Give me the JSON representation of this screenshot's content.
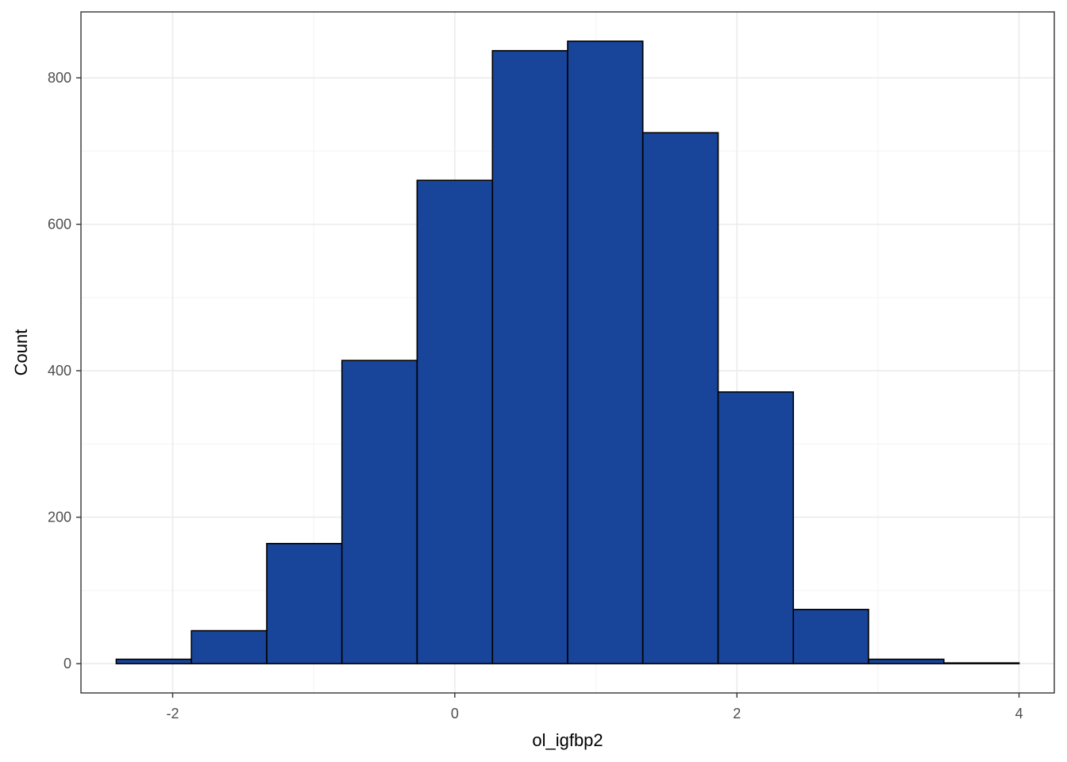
{
  "chart_data": {
    "type": "bar",
    "subtype": "histogram",
    "title": "",
    "xlabel": "ol_igfbp2",
    "ylabel": "Count",
    "xlim": [
      -2.65,
      4.25
    ],
    "ylim": [
      -40,
      890
    ],
    "x_ticks": [
      -2,
      0,
      2,
      4
    ],
    "x_minor_ticks": [
      -1,
      1,
      3
    ],
    "y_ticks": [
      0,
      200,
      400,
      600,
      800
    ],
    "y_minor_ticks": [
      100,
      300,
      500,
      700
    ],
    "grid": true,
    "legend": "none",
    "bins": [
      {
        "x0": -2.4,
        "x1": -1.867,
        "count": 6
      },
      {
        "x0": -1.867,
        "x1": -1.333,
        "count": 45
      },
      {
        "x0": -1.333,
        "x1": -0.8,
        "count": 164
      },
      {
        "x0": -0.8,
        "x1": -0.267,
        "count": 414
      },
      {
        "x0": -0.267,
        "x1": 0.267,
        "count": 660
      },
      {
        "x0": 0.267,
        "x1": 0.8,
        "count": 837
      },
      {
        "x0": 0.8,
        "x1": 1.333,
        "count": 850
      },
      {
        "x0": 1.333,
        "x1": 1.867,
        "count": 725
      },
      {
        "x0": 1.867,
        "x1": 2.4,
        "count": 371
      },
      {
        "x0": 2.4,
        "x1": 2.933,
        "count": 74
      },
      {
        "x0": 2.933,
        "x1": 3.467,
        "count": 6
      },
      {
        "x0": 3.467,
        "x1": 4.0,
        "count": 1
      }
    ],
    "colors": {
      "bar_fill": "#184499",
      "bar_stroke": "#000000",
      "grid_major": "#ebebeb",
      "grid_minor": "#f5f5f5",
      "panel_border": "#333333"
    }
  }
}
